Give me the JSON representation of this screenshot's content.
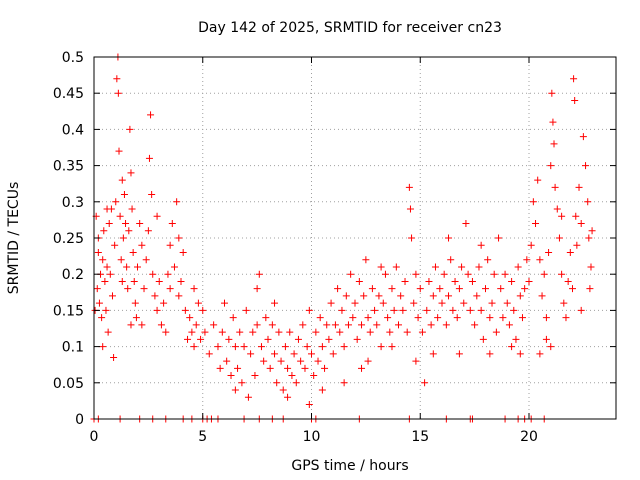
{
  "chart_data": {
    "type": "scatter",
    "title": "Day 142 of 2025, SRMTID for receiver cn23",
    "xlabel": "GPS time / hours",
    "ylabel": "SRMTID / TECUs",
    "xlim": [
      0,
      24
    ],
    "ylim": [
      0,
      0.5
    ],
    "xticks": [
      "0",
      "5",
      "10",
      "15",
      "20"
    ],
    "yticks": [
      "0",
      "0.05",
      "0.1",
      "0.15",
      "0.2",
      "0.25",
      "0.3",
      "0.35",
      "0.4",
      "0.45",
      "0.5"
    ],
    "grid": true,
    "marker": "+",
    "colors": {
      "series": "#ff0000",
      "grid": "#a0a0a0",
      "axis": "#000000"
    },
    "series": [
      {
        "name": "SRMTID",
        "points": [
          [
            0.05,
            0.15
          ],
          [
            0.1,
            0.28
          ],
          [
            0.15,
            0.18
          ],
          [
            0.2,
            0.23
          ],
          [
            0.25,
            0.16
          ],
          [
            0.3,
            0.2
          ],
          [
            0.35,
            0.14
          ],
          [
            0.4,
            0.22
          ],
          [
            0.45,
            0.26
          ],
          [
            0.5,
            0.19
          ],
          [
            0.55,
            0.15
          ],
          [
            0.6,
            0.21
          ],
          [
            0.65,
            0.12
          ],
          [
            0.7,
            0.27
          ],
          [
            0.75,
            0.2
          ],
          [
            0.8,
            0.29
          ],
          [
            0.85,
            0.17
          ],
          [
            0.9,
            0.085
          ],
          [
            0.95,
            0.24
          ],
          [
            1.0,
            0.3
          ],
          [
            1.05,
            0.47
          ],
          [
            1.1,
            0.5
          ],
          [
            1.12,
            0.45
          ],
          [
            1.15,
            0.37
          ],
          [
            1.2,
            0.28
          ],
          [
            1.25,
            0.22
          ],
          [
            1.3,
            0.19
          ],
          [
            1.35,
            0.25
          ],
          [
            1.4,
            0.31
          ],
          [
            1.45,
            0.27
          ],
          [
            1.5,
            0.21
          ],
          [
            1.55,
            0.18
          ],
          [
            1.6,
            0.26
          ],
          [
            1.65,
            0.4
          ],
          [
            1.7,
            0.34
          ],
          [
            1.75,
            0.29
          ],
          [
            1.8,
            0.23
          ],
          [
            1.85,
            0.19
          ],
          [
            1.9,
            0.16
          ],
          [
            1.95,
            0.14
          ],
          [
            2.0,
            0.21
          ],
          [
            2.1,
            0.27
          ],
          [
            2.2,
            0.24
          ],
          [
            2.3,
            0.18
          ],
          [
            2.4,
            0.22
          ],
          [
            2.5,
            0.26
          ],
          [
            2.55,
            0.36
          ],
          [
            2.6,
            0.42
          ],
          [
            2.65,
            0.31
          ],
          [
            2.7,
            0.2
          ],
          [
            2.8,
            0.17
          ],
          [
            2.9,
            0.15
          ],
          [
            3.0,
            0.19
          ],
          [
            3.1,
            0.13
          ],
          [
            3.2,
            0.16
          ],
          [
            3.3,
            0.12
          ],
          [
            3.4,
            0.2
          ],
          [
            3.5,
            0.24
          ],
          [
            3.6,
            0.27
          ],
          [
            3.7,
            0.21
          ],
          [
            3.8,
            0.3
          ],
          [
            3.9,
            0.25
          ],
          [
            4.0,
            0.19
          ],
          [
            4.1,
            0.23
          ],
          [
            4.2,
            0.15
          ],
          [
            4.3,
            0.11
          ],
          [
            4.4,
            0.14
          ],
          [
            4.5,
            0.12
          ],
          [
            4.6,
            0.1
          ],
          [
            4.7,
            0.13
          ],
          [
            4.8,
            0.16
          ],
          [
            4.9,
            0.11
          ],
          [
            5.0,
            0.15
          ],
          [
            5.1,
            0.12
          ],
          [
            5.3,
            0.09
          ],
          [
            5.5,
            0.13
          ],
          [
            5.7,
            0.1
          ],
          [
            5.9,
            0.12
          ],
          [
            6.0,
            0.16
          ],
          [
            6.1,
            0.08
          ],
          [
            6.2,
            0.11
          ],
          [
            6.3,
            0.06
          ],
          [
            6.4,
            0.14
          ],
          [
            6.5,
            0.1
          ],
          [
            6.6,
            0.07
          ],
          [
            6.7,
            0.12
          ],
          [
            6.8,
            0.05
          ],
          [
            6.9,
            0.1
          ],
          [
            7.0,
            0.15
          ],
          [
            7.1,
            0.03
          ],
          [
            7.2,
            0.09
          ],
          [
            7.3,
            0.12
          ],
          [
            7.4,
            0.06
          ],
          [
            7.5,
            0.13
          ],
          [
            7.6,
            0.2
          ],
          [
            7.7,
            0.1
          ],
          [
            7.8,
            0.08
          ],
          [
            7.9,
            0.14
          ],
          [
            8.0,
            0.11
          ],
          [
            8.1,
            0.07
          ],
          [
            8.2,
            0.13
          ],
          [
            8.3,
            0.09
          ],
          [
            8.4,
            0.05
          ],
          [
            8.5,
            0.12
          ],
          [
            8.6,
            0.08
          ],
          [
            8.7,
            0.04
          ],
          [
            8.8,
            0.1
          ],
          [
            8.9,
            0.07
          ],
          [
            9.0,
            0.12
          ],
          [
            9.1,
            0.06
          ],
          [
            9.2,
            0.09
          ],
          [
            9.3,
            0.05
          ],
          [
            9.4,
            0.11
          ],
          [
            9.5,
            0.08
          ],
          [
            9.6,
            0.13
          ],
          [
            9.7,
            0.07
          ],
          [
            9.8,
            0.1
          ],
          [
            9.9,
            0.15
          ],
          [
            10.0,
            0.09
          ],
          [
            10.1,
            0.06
          ],
          [
            10.2,
            0.12
          ],
          [
            10.3,
            0.08
          ],
          [
            10.4,
            0.14
          ],
          [
            10.5,
            0.1
          ],
          [
            10.6,
            0.07
          ],
          [
            10.7,
            0.13
          ],
          [
            10.8,
            0.11
          ],
          [
            10.9,
            0.16
          ],
          [
            11.0,
            0.09
          ],
          [
            11.1,
            0.13
          ],
          [
            11.2,
            0.18
          ],
          [
            11.3,
            0.12
          ],
          [
            11.4,
            0.15
          ],
          [
            11.5,
            0.1
          ],
          [
            11.6,
            0.17
          ],
          [
            11.7,
            0.13
          ],
          [
            11.8,
            0.2
          ],
          [
            11.9,
            0.14
          ],
          [
            12.0,
            0.16
          ],
          [
            12.1,
            0.11
          ],
          [
            12.2,
            0.19
          ],
          [
            12.3,
            0.13
          ],
          [
            12.4,
            0.17
          ],
          [
            12.5,
            0.22
          ],
          [
            12.6,
            0.14
          ],
          [
            12.7,
            0.12
          ],
          [
            12.8,
            0.18
          ],
          [
            12.9,
            0.15
          ],
          [
            13.0,
            0.13
          ],
          [
            13.1,
            0.17
          ],
          [
            13.2,
            0.1
          ],
          [
            13.3,
            0.16
          ],
          [
            13.4,
            0.2
          ],
          [
            13.5,
            0.14
          ],
          [
            13.6,
            0.12
          ],
          [
            13.7,
            0.18
          ],
          [
            13.8,
            0.15
          ],
          [
            13.9,
            0.21
          ],
          [
            14.0,
            0.13
          ],
          [
            14.1,
            0.17
          ],
          [
            14.2,
            0.15
          ],
          [
            14.3,
            0.19
          ],
          [
            14.4,
            0.12
          ],
          [
            14.5,
            0.32
          ],
          [
            14.55,
            0.29
          ],
          [
            14.6,
            0.25
          ],
          [
            14.7,
            0.16
          ],
          [
            14.8,
            0.2
          ],
          [
            14.9,
            0.14
          ],
          [
            15.0,
            0.18
          ],
          [
            15.1,
            0.12
          ],
          [
            15.2,
            0.05
          ],
          [
            15.3,
            0.15
          ],
          [
            15.4,
            0.19
          ],
          [
            15.5,
            0.13
          ],
          [
            15.6,
            0.17
          ],
          [
            15.7,
            0.21
          ],
          [
            15.8,
            0.14
          ],
          [
            15.9,
            0.18
          ],
          [
            16.0,
            0.16
          ],
          [
            16.1,
            0.2
          ],
          [
            16.2,
            0.13
          ],
          [
            16.3,
            0.17
          ],
          [
            16.4,
            0.22
          ],
          [
            16.5,
            0.15
          ],
          [
            16.6,
            0.19
          ],
          [
            16.7,
            0.14
          ],
          [
            16.8,
            0.18
          ],
          [
            16.9,
            0.21
          ],
          [
            17.0,
            0.16
          ],
          [
            17.1,
            0.27
          ],
          [
            17.2,
            0.2
          ],
          [
            17.3,
            0.15
          ],
          [
            17.4,
            0.19
          ],
          [
            17.5,
            0.13
          ],
          [
            17.6,
            0.17
          ],
          [
            17.7,
            0.21
          ],
          [
            17.8,
            0.15
          ],
          [
            17.9,
            0.11
          ],
          [
            18.0,
            0.18
          ],
          [
            18.1,
            0.22
          ],
          [
            18.2,
            0.14
          ],
          [
            18.3,
            0.16
          ],
          [
            18.4,
            0.2
          ],
          [
            18.5,
            0.12
          ],
          [
            18.6,
            0.25
          ],
          [
            18.7,
            0.18
          ],
          [
            18.8,
            0.14
          ],
          [
            18.9,
            0.2
          ],
          [
            19.0,
            0.16
          ],
          [
            19.1,
            0.13
          ],
          [
            19.2,
            0.19
          ],
          [
            19.3,
            0.15
          ],
          [
            19.4,
            0.11
          ],
          [
            19.5,
            0.21
          ],
          [
            19.6,
            0.17
          ],
          [
            19.7,
            0.14
          ],
          [
            19.8,
            0.18
          ],
          [
            19.9,
            0.22
          ],
          [
            20.0,
            0.19
          ],
          [
            20.1,
            0.24
          ],
          [
            20.2,
            0.3
          ],
          [
            20.3,
            0.27
          ],
          [
            20.4,
            0.33
          ],
          [
            20.5,
            0.22
          ],
          [
            20.6,
            0.17
          ],
          [
            20.7,
            0.2
          ],
          [
            20.8,
            0.14
          ],
          [
            20.9,
            0.23
          ],
          [
            21.0,
            0.35
          ],
          [
            21.05,
            0.45
          ],
          [
            21.1,
            0.41
          ],
          [
            21.15,
            0.38
          ],
          [
            21.2,
            0.32
          ],
          [
            21.3,
            0.29
          ],
          [
            21.4,
            0.25
          ],
          [
            21.5,
            0.2
          ],
          [
            21.6,
            0.16
          ],
          [
            21.7,
            0.14
          ],
          [
            21.8,
            0.19
          ],
          [
            21.9,
            0.23
          ],
          [
            22.0,
            0.18
          ],
          [
            22.05,
            0.47
          ],
          [
            22.1,
            0.44
          ],
          [
            22.15,
            0.28
          ],
          [
            22.2,
            0.24
          ],
          [
            22.3,
            0.32
          ],
          [
            22.4,
            0.27
          ],
          [
            22.5,
            0.39
          ],
          [
            22.6,
            0.35
          ],
          [
            22.7,
            0.3
          ],
          [
            22.75,
            0.25
          ],
          [
            22.8,
            0.18
          ],
          [
            22.85,
            0.21
          ],
          [
            0.2,
            0.25
          ],
          [
            0.6,
            0.29
          ],
          [
            1.3,
            0.33
          ],
          [
            2.2,
            0.13
          ],
          [
            3.5,
            0.18
          ],
          [
            3.9,
            0.17
          ],
          [
            5.8,
            0.07
          ],
          [
            6.5,
            0.04
          ],
          [
            7.5,
            0.18
          ],
          [
            8.9,
            0.03
          ],
          [
            10.5,
            0.04
          ],
          [
            12.6,
            0.08
          ],
          [
            13.7,
            0.1
          ],
          [
            16.3,
            0.25
          ],
          [
            17.8,
            0.24
          ],
          [
            19.2,
            0.1
          ],
          [
            20.5,
            0.09
          ],
          [
            21.5,
            0.28
          ],
          [
            22.9,
            0.26
          ],
          [
            0.4,
            0.1
          ],
          [
            1.7,
            0.13
          ],
          [
            2.9,
            0.28
          ],
          [
            4.6,
            0.18
          ],
          [
            9.9,
            0.02
          ],
          [
            14.8,
            0.08
          ],
          [
            21.0,
            0.1
          ],
          [
            11.5,
            0.05
          ],
          [
            12.3,
            0.07
          ],
          [
            16.8,
            0.09
          ],
          [
            18.2,
            0.09
          ],
          [
            19.6,
            0.09
          ],
          [
            20.8,
            0.11
          ],
          [
            22.4,
            0.15
          ],
          [
            15.6,
            0.09
          ],
          [
            13.2,
            0.21
          ],
          [
            8.3,
            0.16
          ],
          [
            0.0,
            0.0
          ],
          [
            0.2,
            0.0
          ],
          [
            1.2,
            0.0
          ],
          [
            2.1,
            0.0
          ],
          [
            2.7,
            0.0
          ],
          [
            3.3,
            0.0
          ],
          [
            4.1,
            0.0
          ],
          [
            4.5,
            0.0
          ],
          [
            5.0,
            0.0
          ],
          [
            5.2,
            0.0
          ],
          [
            5.4,
            0.0
          ],
          [
            5.7,
            0.0
          ],
          [
            6.9,
            0.0
          ],
          [
            7.6,
            0.0
          ],
          [
            8.2,
            0.0
          ],
          [
            8.7,
            0.0
          ],
          [
            10.0,
            0.0
          ],
          [
            10.2,
            0.0
          ],
          [
            12.2,
            0.0
          ],
          [
            14.5,
            0.0
          ],
          [
            16.2,
            0.0
          ],
          [
            17.3,
            0.0
          ],
          [
            17.4,
            0.0
          ],
          [
            18.9,
            0.0
          ],
          [
            19.5,
            0.0
          ],
          [
            19.8,
            0.0
          ],
          [
            20.1,
            0.0
          ],
          [
            20.7,
            0.0
          ]
        ]
      }
    ]
  }
}
